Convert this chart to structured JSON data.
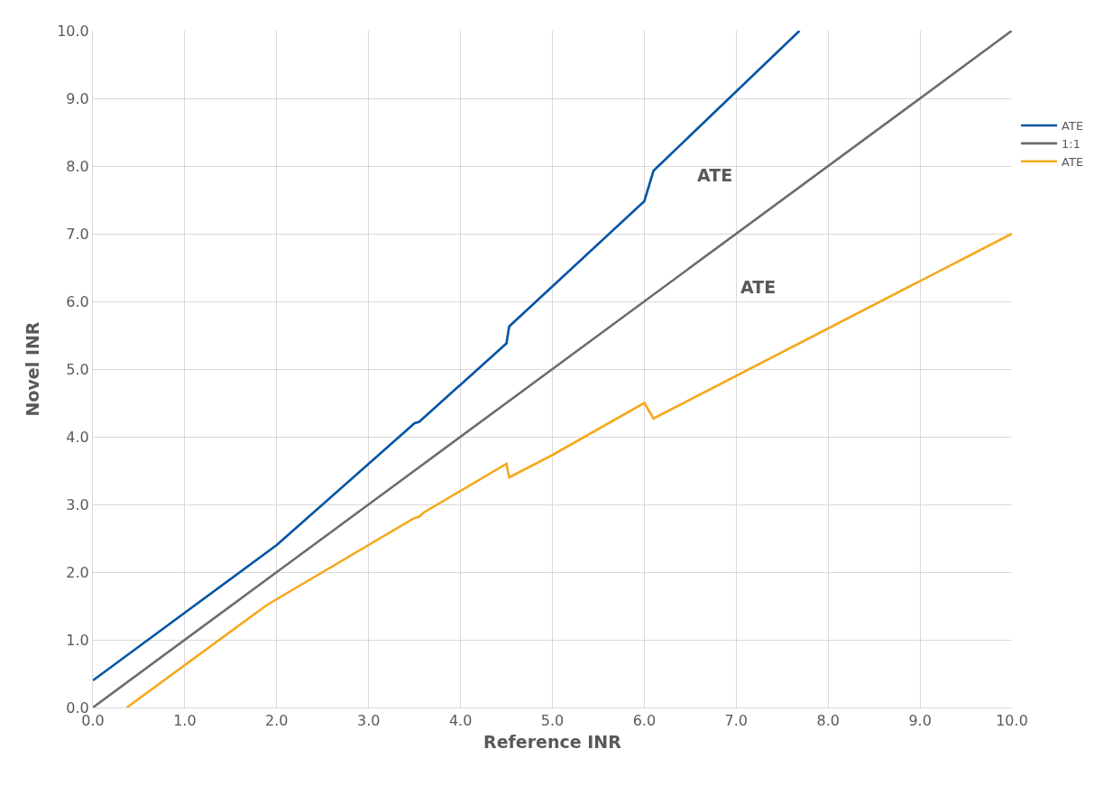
{
  "chart_data": {
    "type": "line",
    "xlabel": "Reference INR",
    "ylabel": "Novel INR",
    "xlim": [
      0,
      10
    ],
    "ylim": [
      0,
      10
    ],
    "xticks": [
      {
        "value": 0,
        "label": "0.0"
      },
      {
        "value": 1,
        "label": "1.0"
      },
      {
        "value": 2,
        "label": "2.0"
      },
      {
        "value": 3,
        "label": "3.0"
      },
      {
        "value": 4,
        "label": "4.0"
      },
      {
        "value": 5,
        "label": "5.0"
      },
      {
        "value": 6,
        "label": "6.0"
      },
      {
        "value": 7,
        "label": "7.0"
      },
      {
        "value": 8,
        "label": "8.0"
      },
      {
        "value": 9,
        "label": "9.0"
      },
      {
        "value": 10,
        "label": "10.0"
      }
    ],
    "yticks": [
      {
        "value": 0,
        "label": "0.0"
      },
      {
        "value": 1,
        "label": "1.0"
      },
      {
        "value": 2,
        "label": "2.0"
      },
      {
        "value": 3,
        "label": "3.0"
      },
      {
        "value": 4,
        "label": "4.0"
      },
      {
        "value": 5,
        "label": "5.0"
      },
      {
        "value": 6,
        "label": "6.0"
      },
      {
        "value": 7,
        "label": "7.0"
      },
      {
        "value": 8,
        "label": "8.0"
      },
      {
        "value": 9,
        "label": "9.0"
      },
      {
        "value": 10,
        "label": "10.0"
      }
    ],
    "grid": true,
    "legend": "right",
    "marker": "none",
    "line_style": "solid",
    "series": [
      {
        "name": "ATE",
        "color": "#0055a4",
        "x": [
          0,
          1.9,
          2.0,
          3.5,
          3.55,
          4.5,
          4.53,
          6.0,
          6.1,
          7.69
        ],
        "values": [
          0.4,
          2.3,
          2.4,
          4.2,
          4.22,
          5.38,
          5.63,
          7.48,
          7.93,
          10.0
        ]
      },
      {
        "name": "1:1",
        "color": "#6b6b6b",
        "x": [
          0,
          1.7,
          2.0,
          3.5,
          4.5,
          10.0
        ],
        "values": [
          0,
          1.7,
          2.0,
          3.5,
          4.5,
          10.0
        ]
      },
      {
        "name": "ATE",
        "color": "#f5a81c",
        "x": [
          0.37,
          1.9,
          2.0,
          3.5,
          3.55,
          3.6,
          4.5,
          4.53,
          5.0,
          6.0,
          6.1,
          10.0
        ],
        "values": [
          0.0,
          1.52,
          1.6,
          2.8,
          2.82,
          2.88,
          3.6,
          3.4,
          3.73,
          4.5,
          4.27,
          7.0
        ]
      }
    ],
    "annotations": [
      "ATE",
      "ATE"
    ]
  }
}
